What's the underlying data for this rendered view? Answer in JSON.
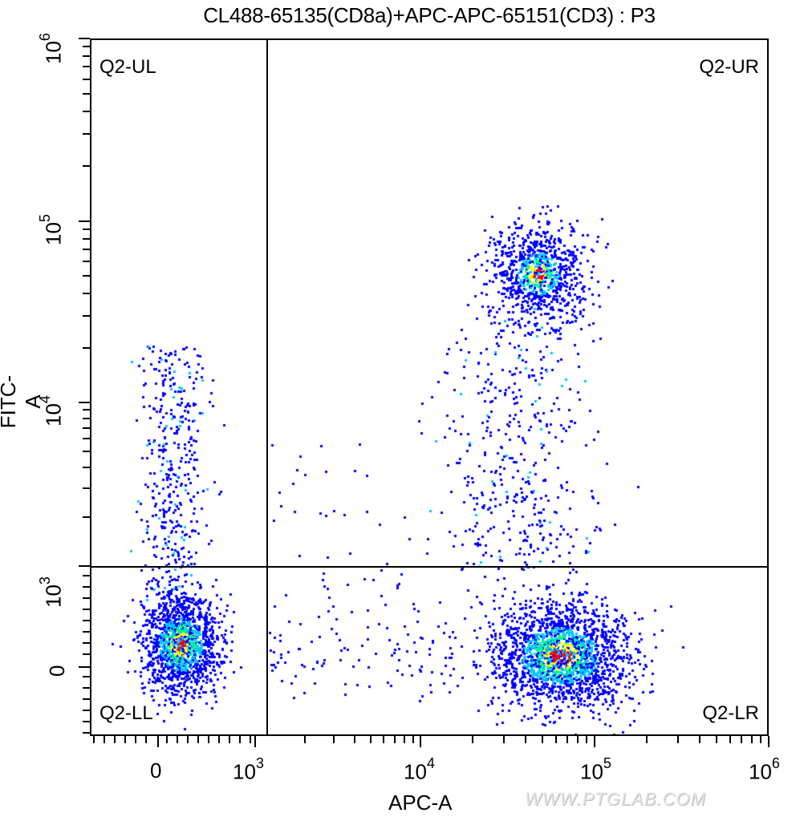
{
  "chart_data": {
    "type": "scatter",
    "subtype": "flow-cytometry-density-dot-plot",
    "title": "CL488-65135(CD8a)+APC-APC-65151(CD3) : P3",
    "xlabel": "APC-A",
    "ylabel": "FITC-A",
    "x_scale": "biexponential",
    "y_scale": "biexponential",
    "x_ticks": [
      "0",
      "10^3",
      "10^4",
      "10^5",
      "10^6"
    ],
    "y_ticks": [
      "0",
      "10^3",
      "10^4",
      "10^5",
      "10^6"
    ],
    "xlim": [
      "~-400",
      "10^6"
    ],
    "ylim": [
      "~-400",
      "10^6"
    ],
    "grid": false,
    "gates": {
      "vertical_x": 1200,
      "horizontal_y": 1050
    },
    "quadrants": [
      {
        "name": "Q2-UL",
        "position": "upper-left"
      },
      {
        "name": "Q2-UR",
        "position": "upper-right"
      },
      {
        "name": "Q2-LL",
        "position": "lower-left"
      },
      {
        "name": "Q2-LR",
        "position": "lower-right"
      }
    ],
    "populations": [
      {
        "label": "CD3- CD8a- (Q2-LL)",
        "center_x": 250,
        "center_y": 200,
        "density": "high"
      },
      {
        "label": "CD3+ CD8a- (Q2-LR)",
        "center_x": 60000,
        "center_y": 200,
        "density": "high"
      },
      {
        "label": "CD3+ CD8a+ (Q2-UR)",
        "center_x": 50000,
        "center_y": 50000,
        "density": "medium"
      },
      {
        "label": "CD3- CD8a+ tail (Q2-UL)",
        "center_x": 300,
        "center_y": 5000,
        "density": "low"
      }
    ],
    "colormap": [
      "#0000ff",
      "#00c8ff",
      "#00ff80",
      "#ffff00",
      "#ff0000"
    ]
  },
  "labels": {
    "title": "CL488-65135(CD8a)+APC-APC-65151(CD3) : P3",
    "xlabel": "APC-A",
    "ylabel": "FITC-A",
    "q_ul": "Q2-UL",
    "q_ur": "Q2-UR",
    "q_ll": "Q2-LL",
    "q_lr": "Q2-LR",
    "watermark": "WWW.PTGLAB.COM"
  },
  "axis": {
    "x": {
      "t0": "0",
      "t3b": "10",
      "t3e": "3",
      "t4b": "10",
      "t4e": "4",
      "t5b": "10",
      "t5e": "5",
      "t6b": "10",
      "t6e": "6"
    },
    "y": {
      "t0": "0",
      "t3b": "10",
      "t3e": "3",
      "t4b": "10",
      "t4e": "4",
      "t5b": "10",
      "t5e": "5",
      "t6b": "10",
      "t6e": "6"
    }
  }
}
